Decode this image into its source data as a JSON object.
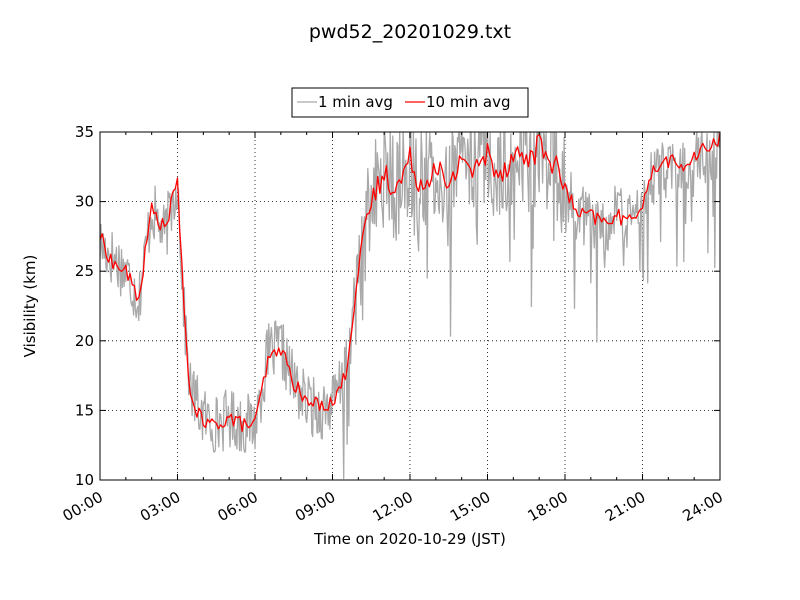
{
  "chart_data": {
    "type": "line",
    "title": "pwd52_20201029.txt",
    "xlabel": "Time on 2020-10-29 (JST)",
    "ylabel": "Visibility (km)",
    "xlim": [
      "00:00",
      "24:00"
    ],
    "ylim": [
      10,
      35
    ],
    "x_ticks": [
      "00:00",
      "03:00",
      "06:00",
      "09:00",
      "12:00",
      "15:00",
      "18:00",
      "21:00",
      "24:00"
    ],
    "y_ticks": [
      10,
      15,
      20,
      25,
      30,
      35
    ],
    "grid": true,
    "legend_position": "top-center",
    "series": [
      {
        "name": "1 min avg",
        "color": "#a9a9a9",
        "x": [
          "00:00",
          "00:30",
          "01:00",
          "01:30",
          "02:00",
          "02:30",
          "03:00",
          "03:15",
          "03:30",
          "04:00",
          "04:30",
          "05:00",
          "05:30",
          "06:00",
          "06:30",
          "07:00",
          "07:30",
          "08:00",
          "08:30",
          "09:00",
          "09:30",
          "10:00",
          "10:30",
          "11:00",
          "11:30",
          "12:00",
          "12:30",
          "13:00",
          "13:30",
          "14:00",
          "14:30",
          "15:00",
          "15:30",
          "16:00",
          "16:30",
          "17:00",
          "17:30",
          "18:00",
          "18:30",
          "19:00",
          "19:30",
          "20:00",
          "20:30",
          "21:00",
          "21:30",
          "22:00",
          "22:30",
          "23:00",
          "23:30",
          "24:00"
        ],
        "y": [
          27.0,
          26.0,
          25.0,
          23.0,
          29.5,
          27.5,
          31.5,
          22.0,
          16.5,
          14.5,
          14.0,
          14.5,
          14.0,
          14.0,
          19.0,
          19.5,
          17.0,
          15.5,
          15.0,
          15.5,
          17.5,
          25.0,
          30.0,
          32.0,
          31.0,
          33.0,
          31.0,
          33.0,
          30.5,
          33.5,
          32.0,
          33.5,
          32.0,
          33.5,
          33.0,
          34.0,
          33.0,
          31.0,
          29.0,
          29.0,
          28.5,
          29.0,
          28.5,
          30.0,
          32.0,
          32.5,
          32.0,
          33.0,
          33.5,
          34.0
        ]
      },
      {
        "name": "10 min avg",
        "color": "#ff0000",
        "x": [
          "00:00",
          "00:30",
          "01:00",
          "01:30",
          "02:00",
          "02:30",
          "03:00",
          "03:15",
          "03:30",
          "04:00",
          "04:30",
          "05:00",
          "05:30",
          "06:00",
          "06:30",
          "07:00",
          "07:30",
          "08:00",
          "08:30",
          "09:00",
          "09:30",
          "10:00",
          "10:30",
          "11:00",
          "11:30",
          "12:00",
          "12:30",
          "13:00",
          "13:30",
          "14:00",
          "14:30",
          "15:00",
          "15:30",
          "16:00",
          "16:30",
          "17:00",
          "17:30",
          "18:00",
          "18:30",
          "19:00",
          "19:30",
          "20:00",
          "20:30",
          "21:00",
          "21:30",
          "22:00",
          "22:30",
          "23:00",
          "23:30",
          "24:00"
        ],
        "y": [
          27.5,
          25.5,
          25.0,
          23.0,
          29.5,
          28.0,
          31.5,
          22.0,
          16.0,
          14.0,
          14.0,
          14.5,
          14.0,
          14.0,
          18.5,
          19.5,
          17.0,
          15.5,
          15.5,
          15.5,
          17.5,
          25.0,
          30.0,
          32.0,
          31.0,
          33.0,
          31.0,
          33.0,
          30.5,
          33.5,
          32.0,
          33.5,
          32.0,
          33.5,
          33.0,
          34.0,
          33.0,
          31.0,
          29.0,
          29.0,
          28.5,
          29.0,
          28.5,
          30.0,
          32.5,
          33.0,
          32.5,
          33.0,
          34.0,
          34.5
        ]
      }
    ]
  }
}
